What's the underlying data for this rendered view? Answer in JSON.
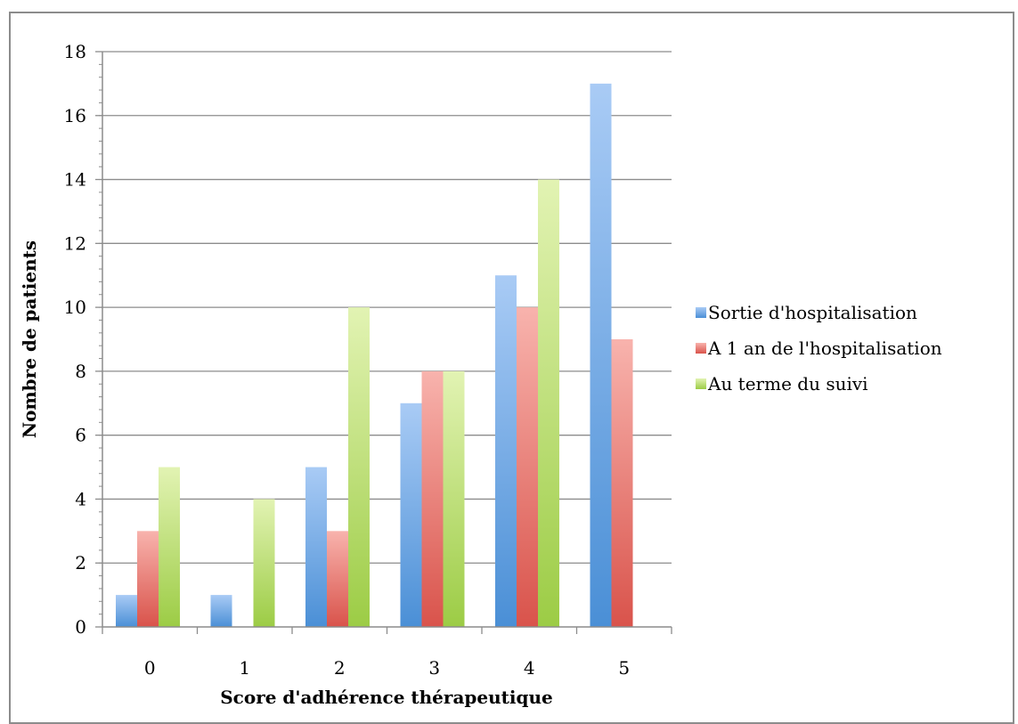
{
  "chart_data": {
    "type": "bar",
    "xlabel": "Score d'adhérence thérapeutique",
    "ylabel": "Nombre de patients",
    "categories": [
      "0",
      "1",
      "2",
      "3",
      "4",
      "5"
    ],
    "ylim": [
      0,
      18
    ],
    "ytick_step": 2,
    "grid": true,
    "legend_position": "right",
    "series": [
      {
        "name": "Sortie d'hospitalisation",
        "values": [
          1,
          1,
          5,
          7,
          11,
          17
        ],
        "color_top": "#a9cbf5",
        "color_bottom": "#4a8fd6"
      },
      {
        "name": "A 1 an de l'hospitalisation",
        "values": [
          3,
          0,
          3,
          8,
          10,
          9
        ],
        "color_top": "#f8b3ad",
        "color_bottom": "#d9534b"
      },
      {
        "name": "Au terme du suivi",
        "values": [
          5,
          4,
          10,
          8,
          14,
          0
        ],
        "color_top": "#e2f3b3",
        "color_bottom": "#9ccc45"
      }
    ]
  }
}
